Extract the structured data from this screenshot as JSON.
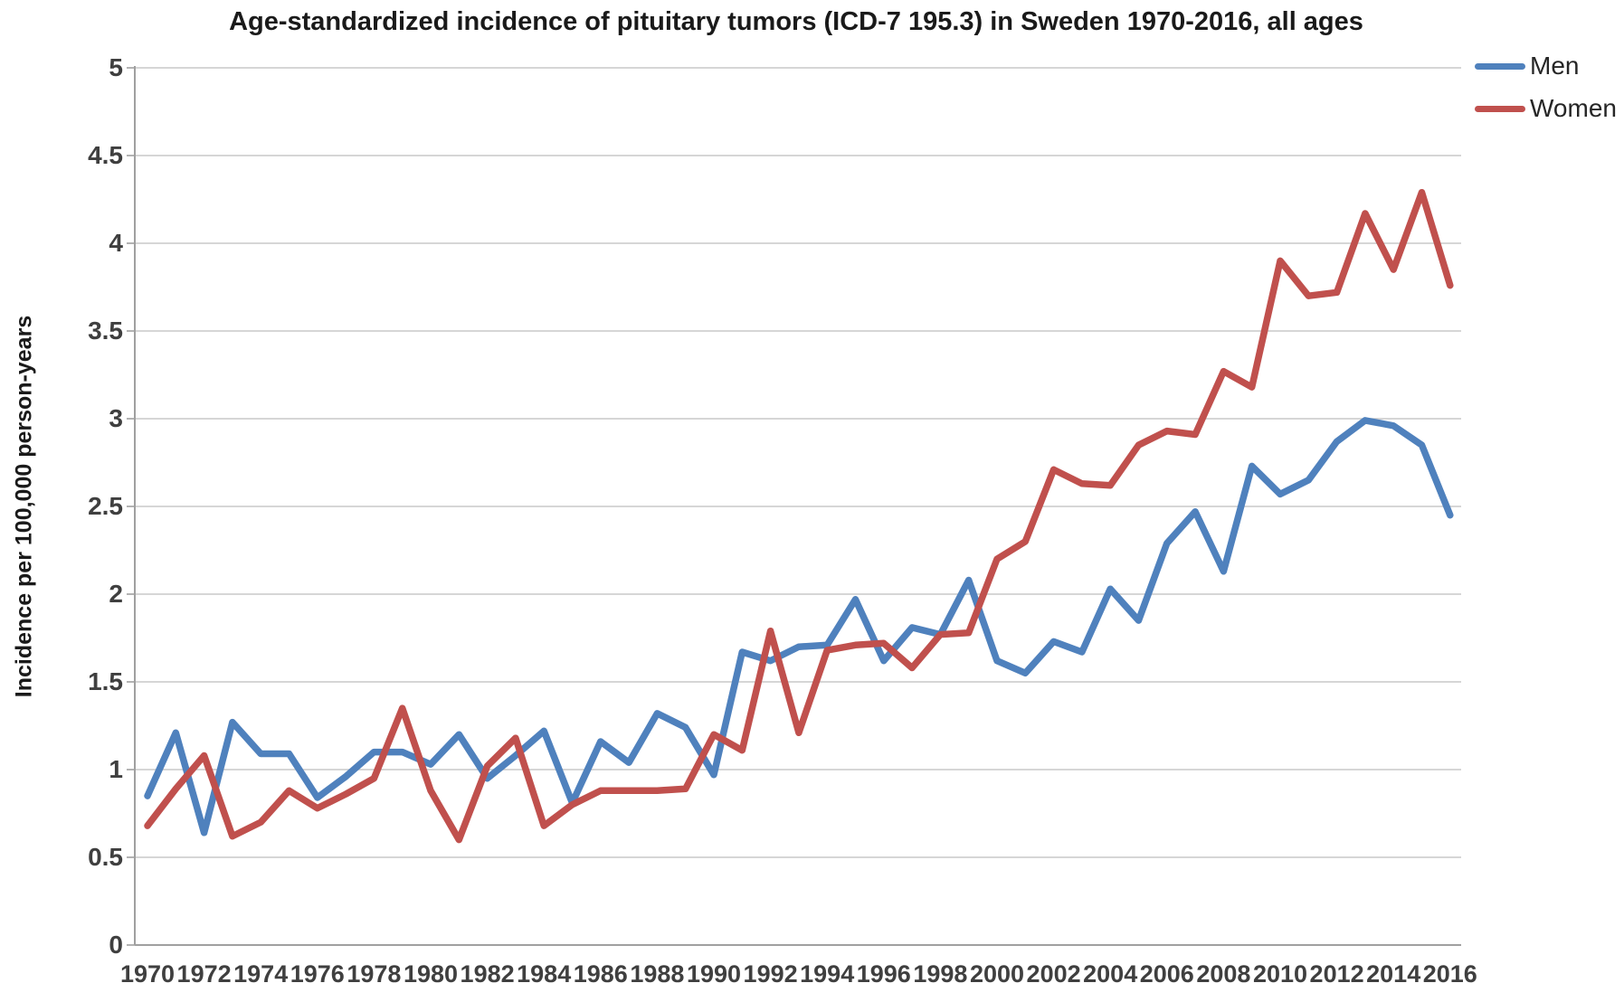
{
  "title": "Age-standardized incidence of pituitary tumors (ICD-7 195.3) in Sweden 1970-2016, all ages",
  "legend": {
    "men": "Men",
    "women": "Women"
  },
  "colors": {
    "men": "#4F81BD",
    "women": "#C0504D",
    "grid": "#C8C8C8",
    "axis": "#A0A0A0",
    "tick_text": "#3F3F3F"
  },
  "chart_data": {
    "type": "line",
    "title": "Age-standardized incidence of pituitary tumors (ICD-7 195.3) in Sweden 1970-2016, all ages",
    "xlabel": "",
    "ylabel": "Incidence per 100,000 person-years",
    "ylim": [
      0,
      5
    ],
    "grid": true,
    "legend_position": "top-right",
    "y_ticks": [
      0,
      0.5,
      1,
      1.5,
      2,
      2.5,
      3,
      3.5,
      4,
      4.5,
      5
    ],
    "y_tick_labels": [
      "0",
      "0.5",
      "1",
      "1.5",
      "2",
      "2.5",
      "3",
      "3.5",
      "4",
      "4.5",
      "5"
    ],
    "x": [
      1970,
      1971,
      1972,
      1973,
      1974,
      1975,
      1976,
      1977,
      1978,
      1979,
      1980,
      1981,
      1982,
      1983,
      1984,
      1985,
      1986,
      1987,
      1988,
      1989,
      1990,
      1991,
      1992,
      1993,
      1994,
      1995,
      1996,
      1997,
      1998,
      1999,
      2000,
      2001,
      2002,
      2003,
      2004,
      2005,
      2006,
      2007,
      2008,
      2009,
      2010,
      2011,
      2012,
      2013,
      2014,
      2015,
      2016
    ],
    "x_tick_labels": [
      "1970",
      "1972",
      "1974",
      "1976",
      "1978",
      "1980",
      "1982",
      "1984",
      "1986",
      "1988",
      "1990",
      "1992",
      "1994",
      "1996",
      "1998",
      "2000",
      "2002",
      "2004",
      "2006",
      "2008",
      "2010",
      "2012",
      "2014",
      "2016"
    ],
    "series": [
      {
        "name": "Men",
        "color": "#4F81BD",
        "values": [
          0.85,
          1.21,
          0.64,
          1.27,
          1.09,
          1.09,
          0.84,
          0.96,
          1.1,
          1.1,
          1.03,
          1.2,
          0.95,
          1.08,
          1.22,
          0.81,
          1.16,
          1.04,
          1.32,
          1.24,
          0.97,
          1.67,
          1.62,
          1.7,
          1.71,
          1.97,
          1.62,
          1.81,
          1.77,
          2.08,
          1.62,
          1.55,
          1.73,
          1.67,
          2.03,
          1.85,
          2.29,
          2.47,
          2.13,
          2.73,
          2.57,
          2.65,
          2.87,
          2.99,
          2.96,
          2.85,
          2.45
        ]
      },
      {
        "name": "Women",
        "color": "#C0504D",
        "values": [
          0.68,
          0.89,
          1.08,
          0.62,
          0.7,
          0.88,
          0.78,
          0.86,
          0.95,
          1.35,
          0.88,
          0.6,
          1.02,
          1.18,
          0.68,
          0.8,
          0.88,
          0.88,
          0.88,
          0.89,
          1.2,
          1.11,
          1.79,
          1.21,
          1.68,
          1.71,
          1.72,
          1.58,
          1.77,
          1.78,
          2.2,
          2.3,
          2.71,
          2.63,
          2.62,
          2.85,
          2.93,
          2.91,
          3.27,
          3.18,
          3.9,
          3.7,
          3.72,
          4.17,
          3.85,
          4.29,
          3.76
        ]
      }
    ]
  }
}
